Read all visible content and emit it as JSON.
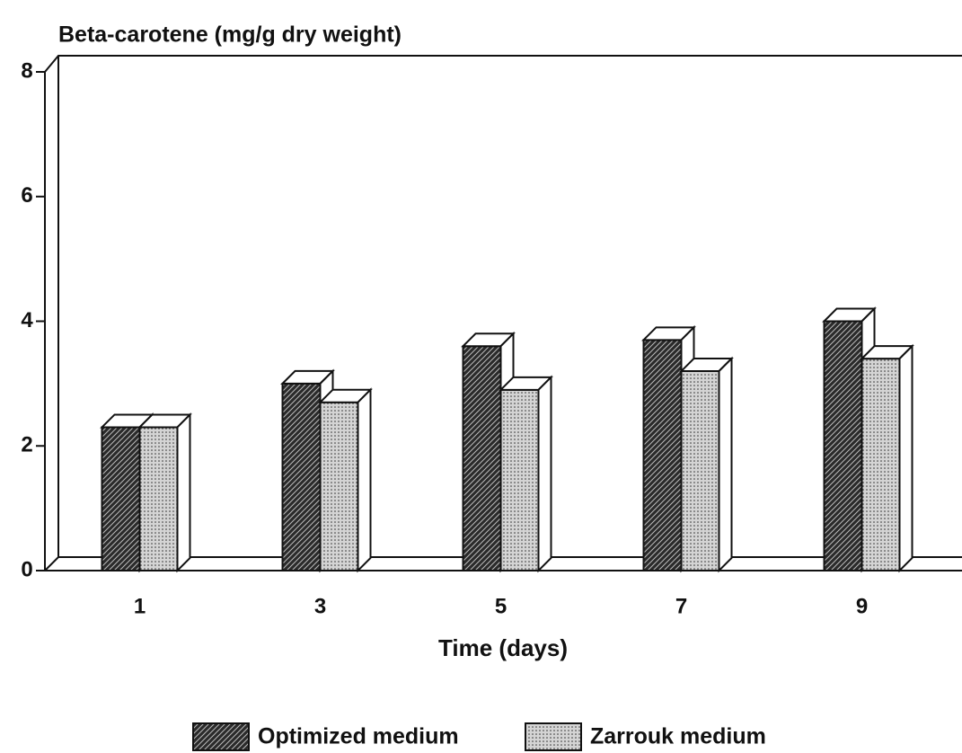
{
  "chart_data": {
    "type": "bar3d",
    "title": "Beta-carotene (mg/g dry weight)",
    "x_label": "Time (days)",
    "categories": [
      "1",
      "3",
      "5",
      "7",
      "9"
    ],
    "series": [
      {
        "name": "Optimized medium",
        "color": "#2a2a2a",
        "values": [
          2.3,
          3.0,
          3.6,
          3.7,
          4.0
        ]
      },
      {
        "name": "Zarrouk medium",
        "color": "#d4d4d4",
        "values": [
          2.3,
          2.7,
          2.9,
          3.2,
          3.4
        ]
      }
    ],
    "ylim": [
      0,
      8
    ],
    "yticks": [
      0,
      2,
      4,
      6,
      8
    ],
    "grid": false,
    "legend": "bottom"
  }
}
